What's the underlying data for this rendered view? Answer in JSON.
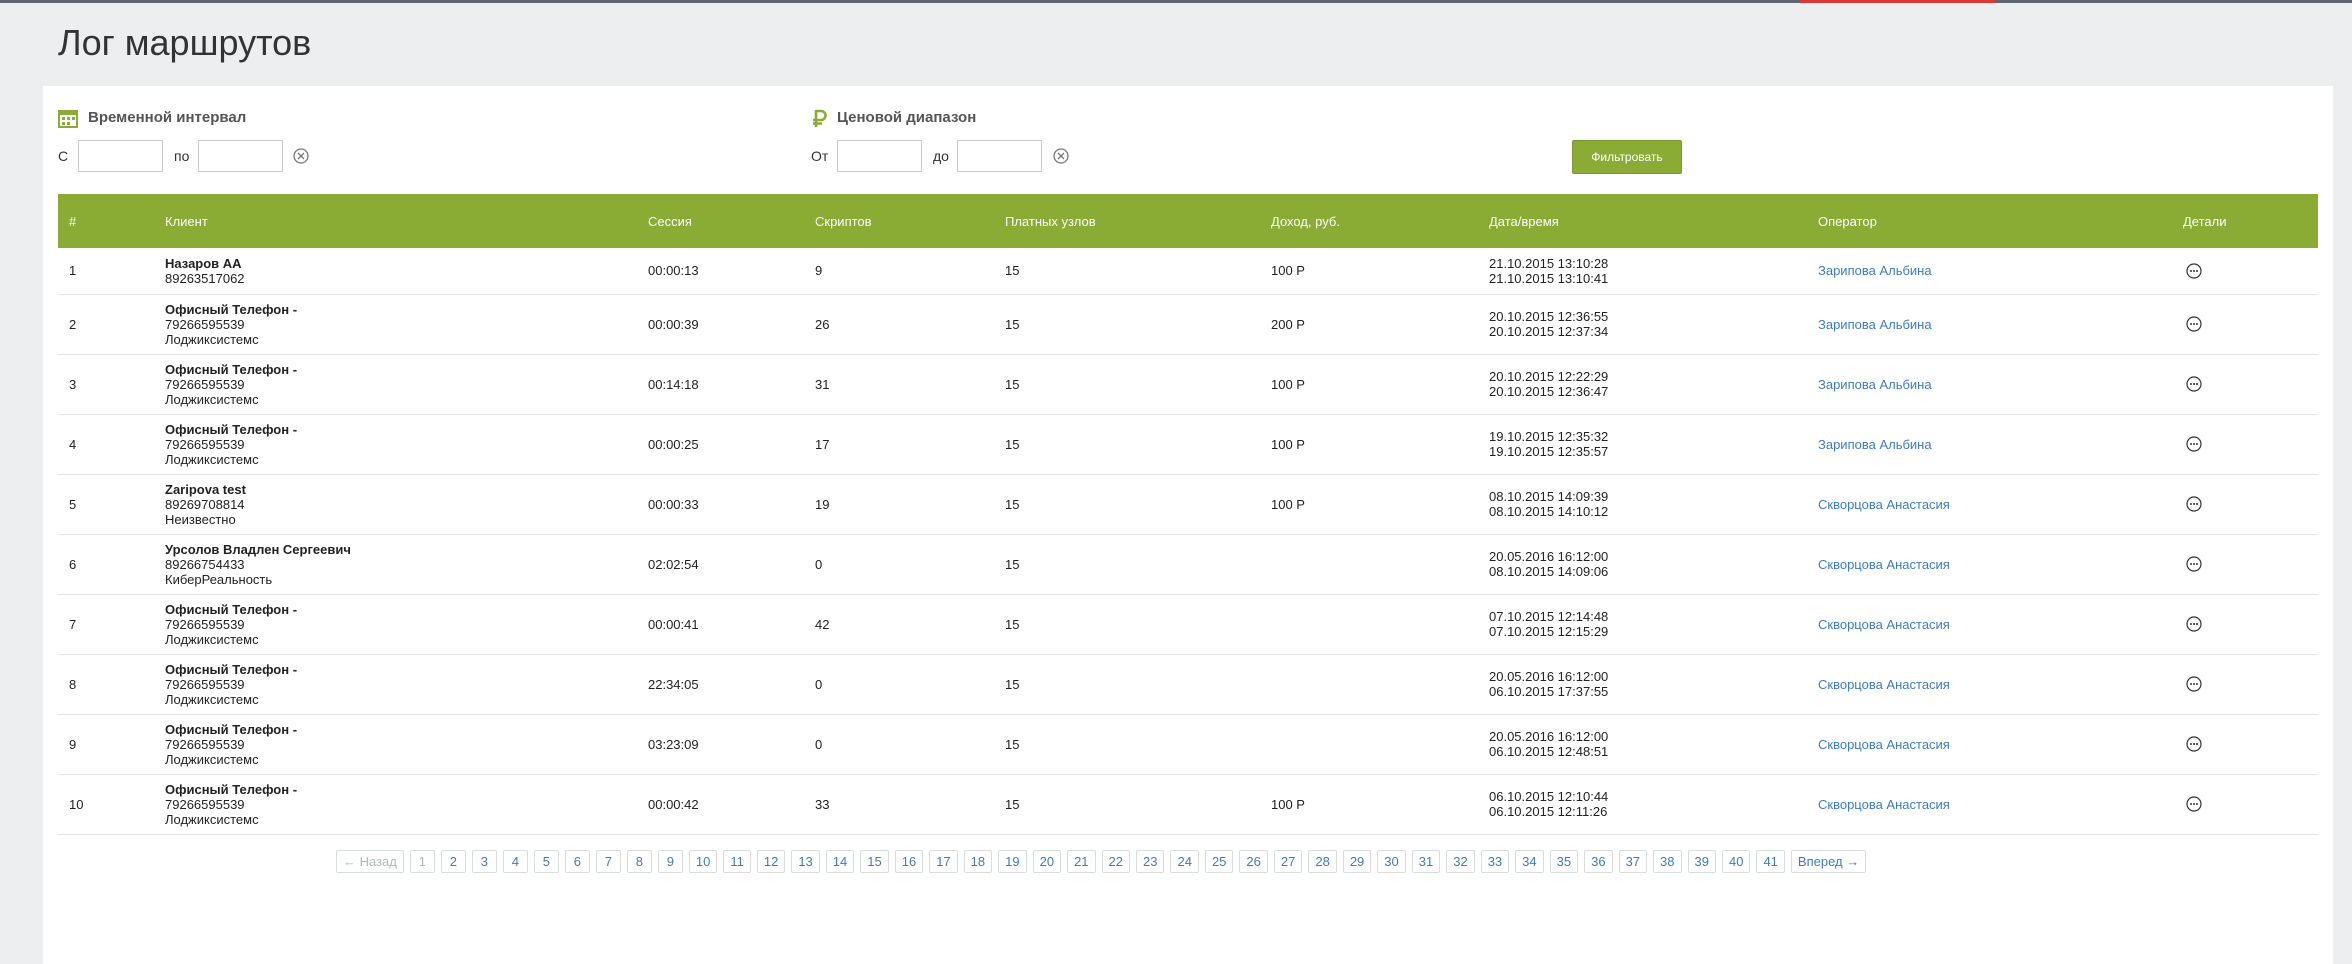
{
  "header": {
    "title": "Лог маршрутов"
  },
  "filters": {
    "time": {
      "title": "Временной интервал",
      "from_label": "С",
      "to_label": "по"
    },
    "price": {
      "title": "Ценовой диапазон",
      "from_label": "От",
      "to_label": "до"
    },
    "button": "Фильтровать"
  },
  "table": {
    "columns": [
      "#",
      "Клиент",
      "Сессия",
      "Скриптов",
      "Платных узлов",
      "Доход, руб.",
      "Дата/время",
      "Оператор",
      "Детали"
    ],
    "rows": [
      {
        "num": 1,
        "name": "Назаров АА",
        "phone": "89263517062",
        "session": "00:00:13",
        "scripts": 9,
        "paid_nodes": 15,
        "income": "100 Р",
        "start": "21.10.2015 13:10:28",
        "end": "21.10.2015 13:10:41",
        "operator": "Зарипова Альбина"
      },
      {
        "num": 2,
        "name": "Офисный Телефон -",
        "phone": "79266595539",
        "company": "Лоджиксистемс",
        "session": "00:00:39",
        "scripts": 26,
        "paid_nodes": 15,
        "income": "200 Р",
        "start": "20.10.2015 12:36:55",
        "end": "20.10.2015 12:37:34",
        "operator": "Зарипова Альбина"
      },
      {
        "num": 3,
        "name": "Офисный Телефон -",
        "phone": "79266595539",
        "company": "Лоджиксистемс",
        "session": "00:14:18",
        "scripts": 31,
        "paid_nodes": 15,
        "income": "100 Р",
        "start": "20.10.2015 12:22:29",
        "end": "20.10.2015 12:36:47",
        "operator": "Зарипова Альбина"
      },
      {
        "num": 4,
        "name": "Офисный Телефон -",
        "phone": "79266595539",
        "company": "Лоджиксистемс",
        "session": "00:00:25",
        "scripts": 17,
        "paid_nodes": 15,
        "income": "100 Р",
        "start": "19.10.2015 12:35:32",
        "end": "19.10.2015 12:35:57",
        "operator": "Зарипова Альбина"
      },
      {
        "num": 5,
        "name": "Zaripova test",
        "phone": "89269708814",
        "company": "Неизвестно",
        "session": "00:00:33",
        "scripts": 19,
        "paid_nodes": 15,
        "income": "100 Р",
        "start": "08.10.2015 14:09:39",
        "end": "08.10.2015 14:10:12",
        "operator": "Скворцова Анастасия"
      },
      {
        "num": 6,
        "name": "Урсолов Владлен Сергеевич",
        "phone": "89266754433",
        "company": "КиберРеальность",
        "session": "02:02:54",
        "scripts": 0,
        "paid_nodes": 15,
        "start": "20.05.2016 16:12:00",
        "end": "08.10.2015 14:09:06",
        "operator": "Скворцова Анастасия"
      },
      {
        "num": 7,
        "name": "Офисный Телефон -",
        "phone": "79266595539",
        "company": "Лоджиксистемс",
        "session": "00:00:41",
        "scripts": 42,
        "paid_nodes": 15,
        "start": "07.10.2015 12:14:48",
        "end": "07.10.2015 12:15:29",
        "operator": "Скворцова Анастасия"
      },
      {
        "num": 8,
        "name": "Офисный Телефон -",
        "phone": "79266595539",
        "company": "Лоджиксистемс",
        "session": "22:34:05",
        "scripts": 0,
        "paid_nodes": 15,
        "start": "20.05.2016 16:12:00",
        "end": "06.10.2015 17:37:55",
        "operator": "Скворцова Анастасия"
      },
      {
        "num": 9,
        "name": "Офисный Телефон -",
        "phone": "79266595539",
        "company": "Лоджиксистемс",
        "session": "03:23:09",
        "scripts": 0,
        "paid_nodes": 15,
        "start": "20.05.2016 16:12:00",
        "end": "06.10.2015 12:48:51",
        "operator": "Скворцова Анастасия"
      },
      {
        "num": 10,
        "name": "Офисный Телефон -",
        "phone": "79266595539",
        "company": "Лоджиксистемс",
        "session": "00:00:42",
        "scripts": 33,
        "paid_nodes": 15,
        "income": "100 Р",
        "start": "06.10.2015 12:10:44",
        "end": "06.10.2015 12:11:26",
        "operator": "Скворцова Анастасия"
      }
    ]
  },
  "pagination": {
    "prev": "← Назад",
    "next": "Вперед →",
    "pages": [
      1,
      2,
      3,
      4,
      5,
      6,
      7,
      8,
      9,
      10,
      11,
      12,
      13,
      14,
      15,
      16,
      17,
      18,
      19,
      20,
      21,
      22,
      23,
      24,
      25,
      26,
      27,
      28,
      29,
      30,
      31,
      32,
      33,
      34,
      35,
      36,
      37,
      38,
      39,
      40,
      41
    ]
  }
}
